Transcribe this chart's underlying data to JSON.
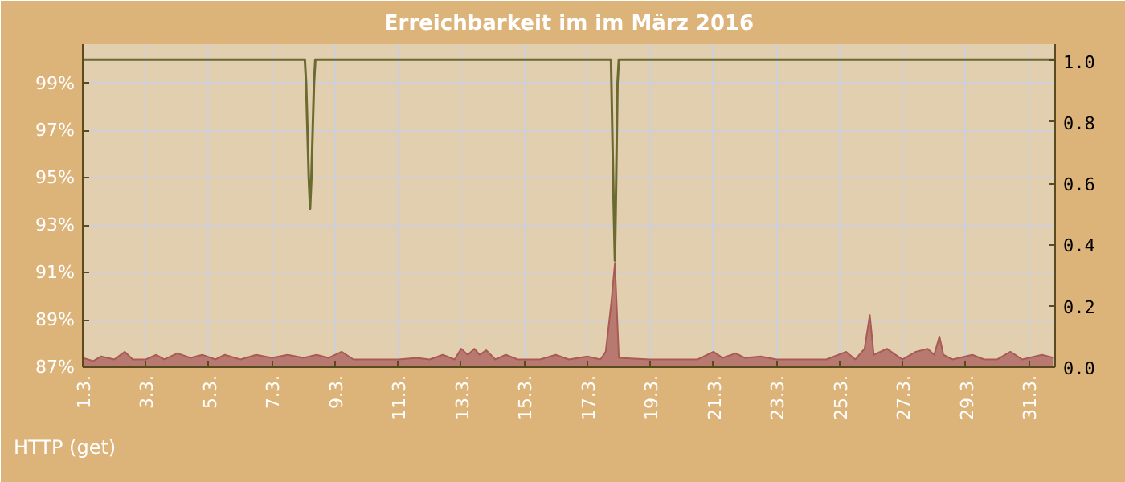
{
  "chart_data": {
    "type": "area",
    "title": "Erreichbarkeit im im März 2016",
    "annotations": [
      "HTTP (get)"
    ],
    "xlim": [
      "2016-03-01T00:00",
      "2016-03-31T20:00"
    ],
    "xticks": [
      {
        "value": "2016-03-01",
        "label": "1.3."
      },
      {
        "value": "2016-03-03",
        "label": "3.3."
      },
      {
        "value": "2016-03-05",
        "label": "5.3."
      },
      {
        "value": "2016-03-07",
        "label": "7.3."
      },
      {
        "value": "2016-03-09",
        "label": "9.3."
      },
      {
        "value": "2016-03-11",
        "label": "11.3."
      },
      {
        "value": "2016-03-13",
        "label": "13.3."
      },
      {
        "value": "2016-03-15",
        "label": "15.3."
      },
      {
        "value": "2016-03-17",
        "label": "17.3."
      },
      {
        "value": "2016-03-19",
        "label": "19.3."
      },
      {
        "value": "2016-03-21",
        "label": "21.3."
      },
      {
        "value": "2016-03-23",
        "label": "23.3."
      },
      {
        "value": "2016-03-25",
        "label": "25.3."
      },
      {
        "value": "2016-03-27",
        "label": "27.3."
      },
      {
        "value": "2016-03-29",
        "label": "29.3."
      },
      {
        "value": "2016-03-31",
        "label": "31.3."
      }
    ],
    "ylim": [
      87,
      100.65
    ],
    "yticks": [
      {
        "value": 87,
        "label": "87%"
      },
      {
        "value": 89,
        "label": "89%"
      },
      {
        "value": 91,
        "label": "91%"
      },
      {
        "value": 93,
        "label": "93%"
      },
      {
        "value": 95,
        "label": "95%"
      },
      {
        "value": 97,
        "label": "97%"
      },
      {
        "value": 99,
        "label": "99%"
      }
    ],
    "y2lim": [
      0,
      1.054
    ],
    "y2ticks": [
      {
        "value": 0,
        "label": "0.0"
      },
      {
        "value": 0.2,
        "label": "0.2"
      },
      {
        "value": 0.4,
        "label": "0.4"
      },
      {
        "value": 0.6,
        "label": "0.6"
      },
      {
        "value": 0.8,
        "label": "0.8"
      },
      {
        "value": 1,
        "label": "1.0"
      }
    ],
    "grid": true,
    "series": [
      {
        "type": "line",
        "color": "#6b6a30",
        "axis": "y",
        "x": [
          "2016-03-01T00:00",
          "2016-03-08T01:00",
          "2016-03-08T02:00",
          "2016-03-08T03:00",
          "2016-03-08T04:00",
          "2016-03-08T05:00",
          "2016-03-08T06:00",
          "2016-03-08T07:00",
          "2016-03-08T08:00",
          "2016-03-08T09:00",
          "2016-03-17T18:00",
          "2016-03-17T19:00",
          "2016-03-17T20:00",
          "2016-03-17T21:00",
          "2016-03-17T22:00",
          "2016-03-17T23:00",
          "2016-03-18T00:00",
          "2016-03-31T20:00"
        ],
        "values": [
          100,
          100,
          99,
          97,
          95,
          93.7,
          95,
          97,
          99,
          100,
          100,
          97,
          94,
          91.5,
          95,
          99,
          100,
          100
        ]
      },
      {
        "color": "#b87a70",
        "axis": "y2",
        "x": [
          "2016-03-01T00:00",
          "2016-03-01T08:00",
          "2016-03-01T14:00",
          "2016-03-02T00:00",
          "2016-03-02T08:00",
          "2016-03-02T14:00",
          "2016-03-03T00:00",
          "2016-03-03T08:00",
          "2016-03-03T14:00",
          "2016-03-04T00:00",
          "2016-03-04T10:00",
          "2016-03-04T19:00",
          "2016-03-05T05:00",
          "2016-03-05T12:00",
          "2016-03-06T00:00",
          "2016-03-06T12:00",
          "2016-03-07T00:00",
          "2016-03-07T12:00",
          "2016-03-08T00:00",
          "2016-03-08T10:00",
          "2016-03-08T19:00",
          "2016-03-09T05:00",
          "2016-03-09T14:00",
          "2016-03-10T00:00",
          "2016-03-11T00:00",
          "2016-03-11T14:00",
          "2016-03-12T00:00",
          "2016-03-12T10:00",
          "2016-03-12T19:00",
          "2016-03-13T00:00",
          "2016-03-13T05:00",
          "2016-03-13T10:00",
          "2016-03-13T14:00",
          "2016-03-13T19:00",
          "2016-03-14T02:00",
          "2016-03-14T10:00",
          "2016-03-14T19:00",
          "2016-03-15T12:00",
          "2016-03-16T00:00",
          "2016-03-16T10:00",
          "2016-03-17T00:00",
          "2016-03-17T10:00",
          "2016-03-17T14:00",
          "2016-03-17T18:00",
          "2016-03-17T21:00",
          "2016-03-18T00:00",
          "2016-03-19T00:00",
          "2016-03-20T00:00",
          "2016-03-20T12:00",
          "2016-03-21T00:00",
          "2016-03-21T07:00",
          "2016-03-21T17:00",
          "2016-03-22T00:00",
          "2016-03-22T12:00",
          "2016-03-23T00:00",
          "2016-03-24T00:00",
          "2016-03-24T14:00",
          "2016-03-25T05:00",
          "2016-03-25T12:00",
          "2016-03-25T19:00",
          "2016-03-25T23:00",
          "2016-03-26T02:00",
          "2016-03-26T12:00",
          "2016-03-26T22:00",
          "2016-03-27T00:00",
          "2016-03-27T10:00",
          "2016-03-27T19:00",
          "2016-03-28T00:00",
          "2016-03-28T04:00",
          "2016-03-28T07:00",
          "2016-03-28T14:00",
          "2016-03-29T05:00",
          "2016-03-29T14:00",
          "2016-03-30T00:00",
          "2016-03-30T10:00",
          "2016-03-30T19:00",
          "2016-03-31T10:00",
          "2016-03-31T19:00"
        ],
        "values": [
          0.03,
          0.02,
          0.035,
          0.025,
          0.05,
          0.025,
          0.025,
          0.04,
          0.025,
          0.045,
          0.03,
          0.04,
          0.025,
          0.04,
          0.025,
          0.04,
          0.03,
          0.04,
          0.03,
          0.04,
          0.03,
          0.05,
          0.025,
          0.025,
          0.025,
          0.03,
          0.025,
          0.04,
          0.025,
          0.06,
          0.04,
          0.06,
          0.04,
          0.055,
          0.025,
          0.04,
          0.025,
          0.025,
          0.04,
          0.025,
          0.035,
          0.025,
          0.05,
          0.2,
          0.34,
          0.03,
          0.025,
          0.025,
          0.025,
          0.05,
          0.03,
          0.045,
          0.03,
          0.035,
          0.025,
          0.025,
          0.025,
          0.05,
          0.025,
          0.06,
          0.17,
          0.04,
          0.06,
          0.03,
          0.025,
          0.05,
          0.06,
          0.04,
          0.1,
          0.04,
          0.025,
          0.04,
          0.025,
          0.025,
          0.05,
          0.025,
          0.04,
          0.03
        ]
      }
    ]
  }
}
